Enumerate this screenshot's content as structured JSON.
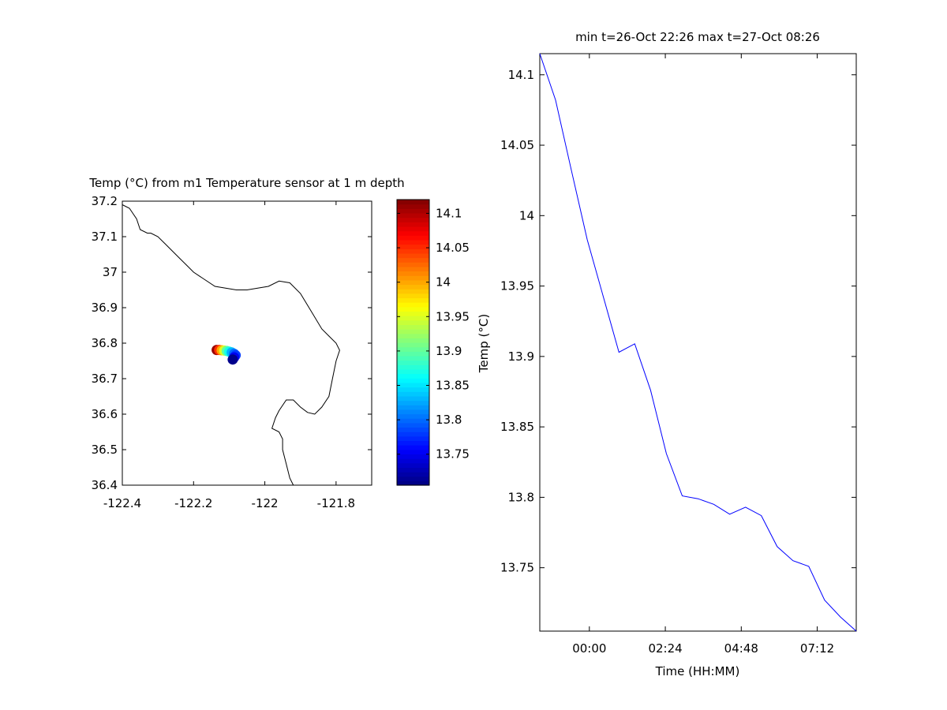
{
  "chart_data": [
    {
      "type": "scatter",
      "title": "Temp (°C) from m1 Temperature sensor at 1 m depth",
      "xlabel": "",
      "ylabel": "",
      "xlim": [
        -122.4,
        -121.7
      ],
      "ylim": [
        36.4,
        37.2
      ],
      "xticks": [
        "-122.4",
        "-122.2",
        "-122",
        "-121.8"
      ],
      "yticks": [
        "37.2",
        "37.1",
        "37",
        "36.9",
        "36.8",
        "36.7",
        "36.6",
        "36.5",
        "36.4"
      ],
      "coastline": {
        "x": [
          -122.4,
          -122.38,
          -122.36,
          -122.35,
          -122.33,
          -122.32,
          -122.3,
          -122.28,
          -122.26,
          -122.24,
          -122.22,
          -122.2,
          -122.17,
          -122.14,
          -122.11,
          -122.08,
          -122.05,
          -122.02,
          -121.99,
          -121.96,
          -121.93,
          -121.9,
          -121.87,
          -121.84,
          -121.82,
          -121.8,
          -121.79,
          -121.8,
          -121.81,
          -121.82,
          -121.84,
          -121.86,
          -121.88,
          -121.9,
          -121.92,
          -121.94,
          -121.96,
          -121.97,
          -121.98,
          -121.96,
          -121.95,
          -121.95,
          -121.94,
          -121.93,
          -121.92
        ],
        "y": [
          37.19,
          37.18,
          37.15,
          37.12,
          37.11,
          37.11,
          37.1,
          37.08,
          37.06,
          37.04,
          37.02,
          37.0,
          36.98,
          36.96,
          36.955,
          36.95,
          36.95,
          36.955,
          36.96,
          36.975,
          36.97,
          36.94,
          36.89,
          36.84,
          36.82,
          36.8,
          36.78,
          36.75,
          36.7,
          36.65,
          36.62,
          36.6,
          36.605,
          36.62,
          36.64,
          36.64,
          36.61,
          36.59,
          36.56,
          36.55,
          36.53,
          36.5,
          36.46,
          36.42,
          36.4
        ]
      },
      "points": {
        "lon": [
          -122.135,
          -122.128,
          -122.121,
          -122.114,
          -122.107,
          -122.1,
          -122.093,
          -122.086,
          -122.082,
          -122.086,
          -122.09
        ],
        "lat": [
          36.781,
          36.781,
          36.78,
          36.779,
          36.778,
          36.776,
          36.774,
          36.77,
          36.766,
          36.76,
          36.754
        ],
        "temp": [
          14.11,
          14.05,
          14.0,
          13.95,
          13.9,
          13.87,
          13.83,
          13.8,
          13.78,
          13.75,
          13.71
        ]
      },
      "colorbar": {
        "label": "Temp (°C)",
        "range": [
          13.705,
          14.12
        ],
        "ticks": [
          "14.1",
          "14.05",
          "14",
          "13.95",
          "13.9",
          "13.85",
          "13.8",
          "13.75"
        ],
        "colormap": "jet"
      }
    },
    {
      "type": "line",
      "title": "min t=26-Oct 22:26 max t=27-Oct 08:26",
      "xlabel": "Time (HH:MM)",
      "ylabel": "",
      "xlim": [
        "26-Oct 22:26",
        "27-Oct 08:26"
      ],
      "ylim": [
        13.705,
        14.115
      ],
      "xticks": [
        "00:00",
        "02:24",
        "04:48",
        "07:12"
      ],
      "yticks": [
        "14.1",
        "14.05",
        "14",
        "13.95",
        "13.9",
        "13.85",
        "13.8",
        "13.75"
      ],
      "color": "#0000ff",
      "series": [
        {
          "x": [
            "26-Oct 22:26",
            "26-Oct 22:56",
            "26-Oct 23:26",
            "26-Oct 23:56",
            "27-Oct 00:26",
            "27-Oct 00:56",
            "27-Oct 01:26",
            "27-Oct 01:56",
            "27-Oct 02:26",
            "27-Oct 02:56",
            "27-Oct 03:26",
            "27-Oct 03:56",
            "27-Oct 04:26",
            "27-Oct 04:56",
            "27-Oct 05:26",
            "27-Oct 05:56",
            "27-Oct 06:26",
            "27-Oct 06:56",
            "27-Oct 07:26",
            "27-Oct 07:56",
            "27-Oct 08:26"
          ],
          "values": [
            14.115,
            14.082,
            14.032,
            13.983,
            13.943,
            13.903,
            13.909,
            13.876,
            13.831,
            13.801,
            13.799,
            13.795,
            13.788,
            13.793,
            13.787,
            13.765,
            13.755,
            13.751,
            13.727,
            13.715,
            13.705
          ]
        }
      ]
    }
  ]
}
